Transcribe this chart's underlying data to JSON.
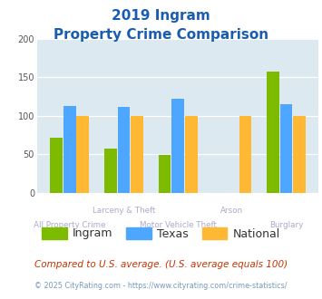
{
  "title_line1": "2019 Ingram",
  "title_line2": "Property Crime Comparison",
  "categories": [
    "All Property Crime",
    "Larceny & Theft",
    "Motor Vehicle Theft",
    "Arson",
    "Burglary"
  ],
  "top_labels": [
    "",
    "Larceny & Theft",
    "",
    "Arson",
    ""
  ],
  "bottom_labels": [
    "All Property Crime",
    "",
    "Motor Vehicle Theft",
    "",
    "Burglary"
  ],
  "ingram": [
    72,
    57,
    49,
    0,
    157
  ],
  "texas": [
    113,
    112,
    122,
    0,
    115
  ],
  "national": [
    100,
    100,
    100,
    100,
    100
  ],
  "ingram_color": "#7cbb00",
  "texas_color": "#4da6ff",
  "national_color": "#ffb833",
  "ylim": [
    0,
    200
  ],
  "yticks": [
    0,
    50,
    100,
    150,
    200
  ],
  "plot_bg": "#dce9f0",
  "title_color": "#1a5cb0",
  "xlabel_color": "#aaaacc",
  "legend_labels": [
    "Ingram",
    "Texas",
    "National"
  ],
  "footer_note": "Compared to U.S. average. (U.S. average equals 100)",
  "footer_copy": "© 2025 CityRating.com - https://www.cityrating.com/crime-statistics/",
  "footer_note_color": "#cc3300",
  "footer_copy_color": "#7799bb"
}
